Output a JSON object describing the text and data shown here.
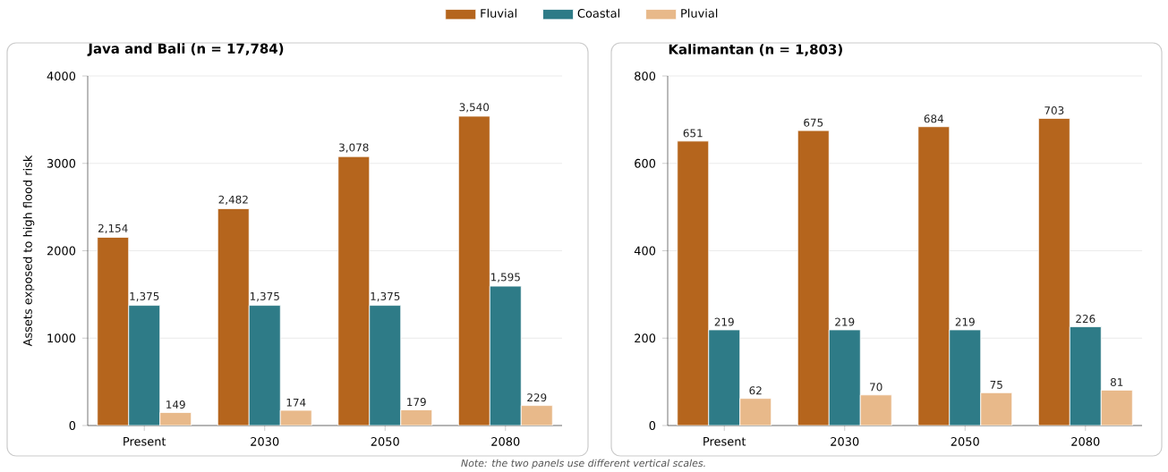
{
  "chart_data": [
    {
      "type": "bar",
      "title": "Java and Bali (n = 17,784)",
      "ylabel": "Assets exposed to high flood risk",
      "categories": [
        "Present",
        "2030",
        "2050",
        "2080"
      ],
      "series": [
        {
          "name": "Fluvial",
          "color": "#b5651d",
          "values": [
            2154,
            2482,
            3078,
            3540
          ],
          "value_labels": [
            "2,154",
            "2,482",
            "3,078",
            "3,540"
          ]
        },
        {
          "name": "Coastal",
          "color": "#2e7b87",
          "values": [
            1375,
            1375,
            1375,
            1595
          ],
          "value_labels": [
            "1,375",
            "1,375",
            "1,375",
            "1,595"
          ]
        },
        {
          "name": "Pluvial",
          "color": "#e8b98a",
          "values": [
            149,
            174,
            179,
            229
          ],
          "value_labels": [
            "149",
            "174",
            "179",
            "229"
          ]
        }
      ],
      "ylim": [
        0,
        4000
      ],
      "yticks": [
        0,
        1000,
        2000,
        3000,
        4000
      ],
      "grid": "y",
      "legend": "top",
      "annotations": [
        "Note: the two panels use different vertical scales."
      ]
    },
    {
      "type": "bar",
      "title": "Kalimantan (n = 1,803)",
      "categories": [
        "Present",
        "2030",
        "2050",
        "2080"
      ],
      "series": [
        {
          "color": "#b5651d",
          "values": [
            651,
            675,
            684,
            703
          ],
          "value_labels": [
            "651",
            "675",
            "684",
            "703"
          ]
        },
        {
          "color": "#2e7b87",
          "values": [
            219,
            219,
            219,
            226
          ],
          "value_labels": [
            "219",
            "219",
            "219",
            "226"
          ]
        },
        {
          "color": "#e8b98a",
          "values": [
            62,
            70,
            75,
            81
          ],
          "value_labels": [
            "62",
            "70",
            "75",
            "81"
          ]
        }
      ],
      "ylim": [
        0,
        800
      ],
      "yticks": [
        0,
        200,
        400,
        600,
        800
      ],
      "grid": "y"
    }
  ]
}
